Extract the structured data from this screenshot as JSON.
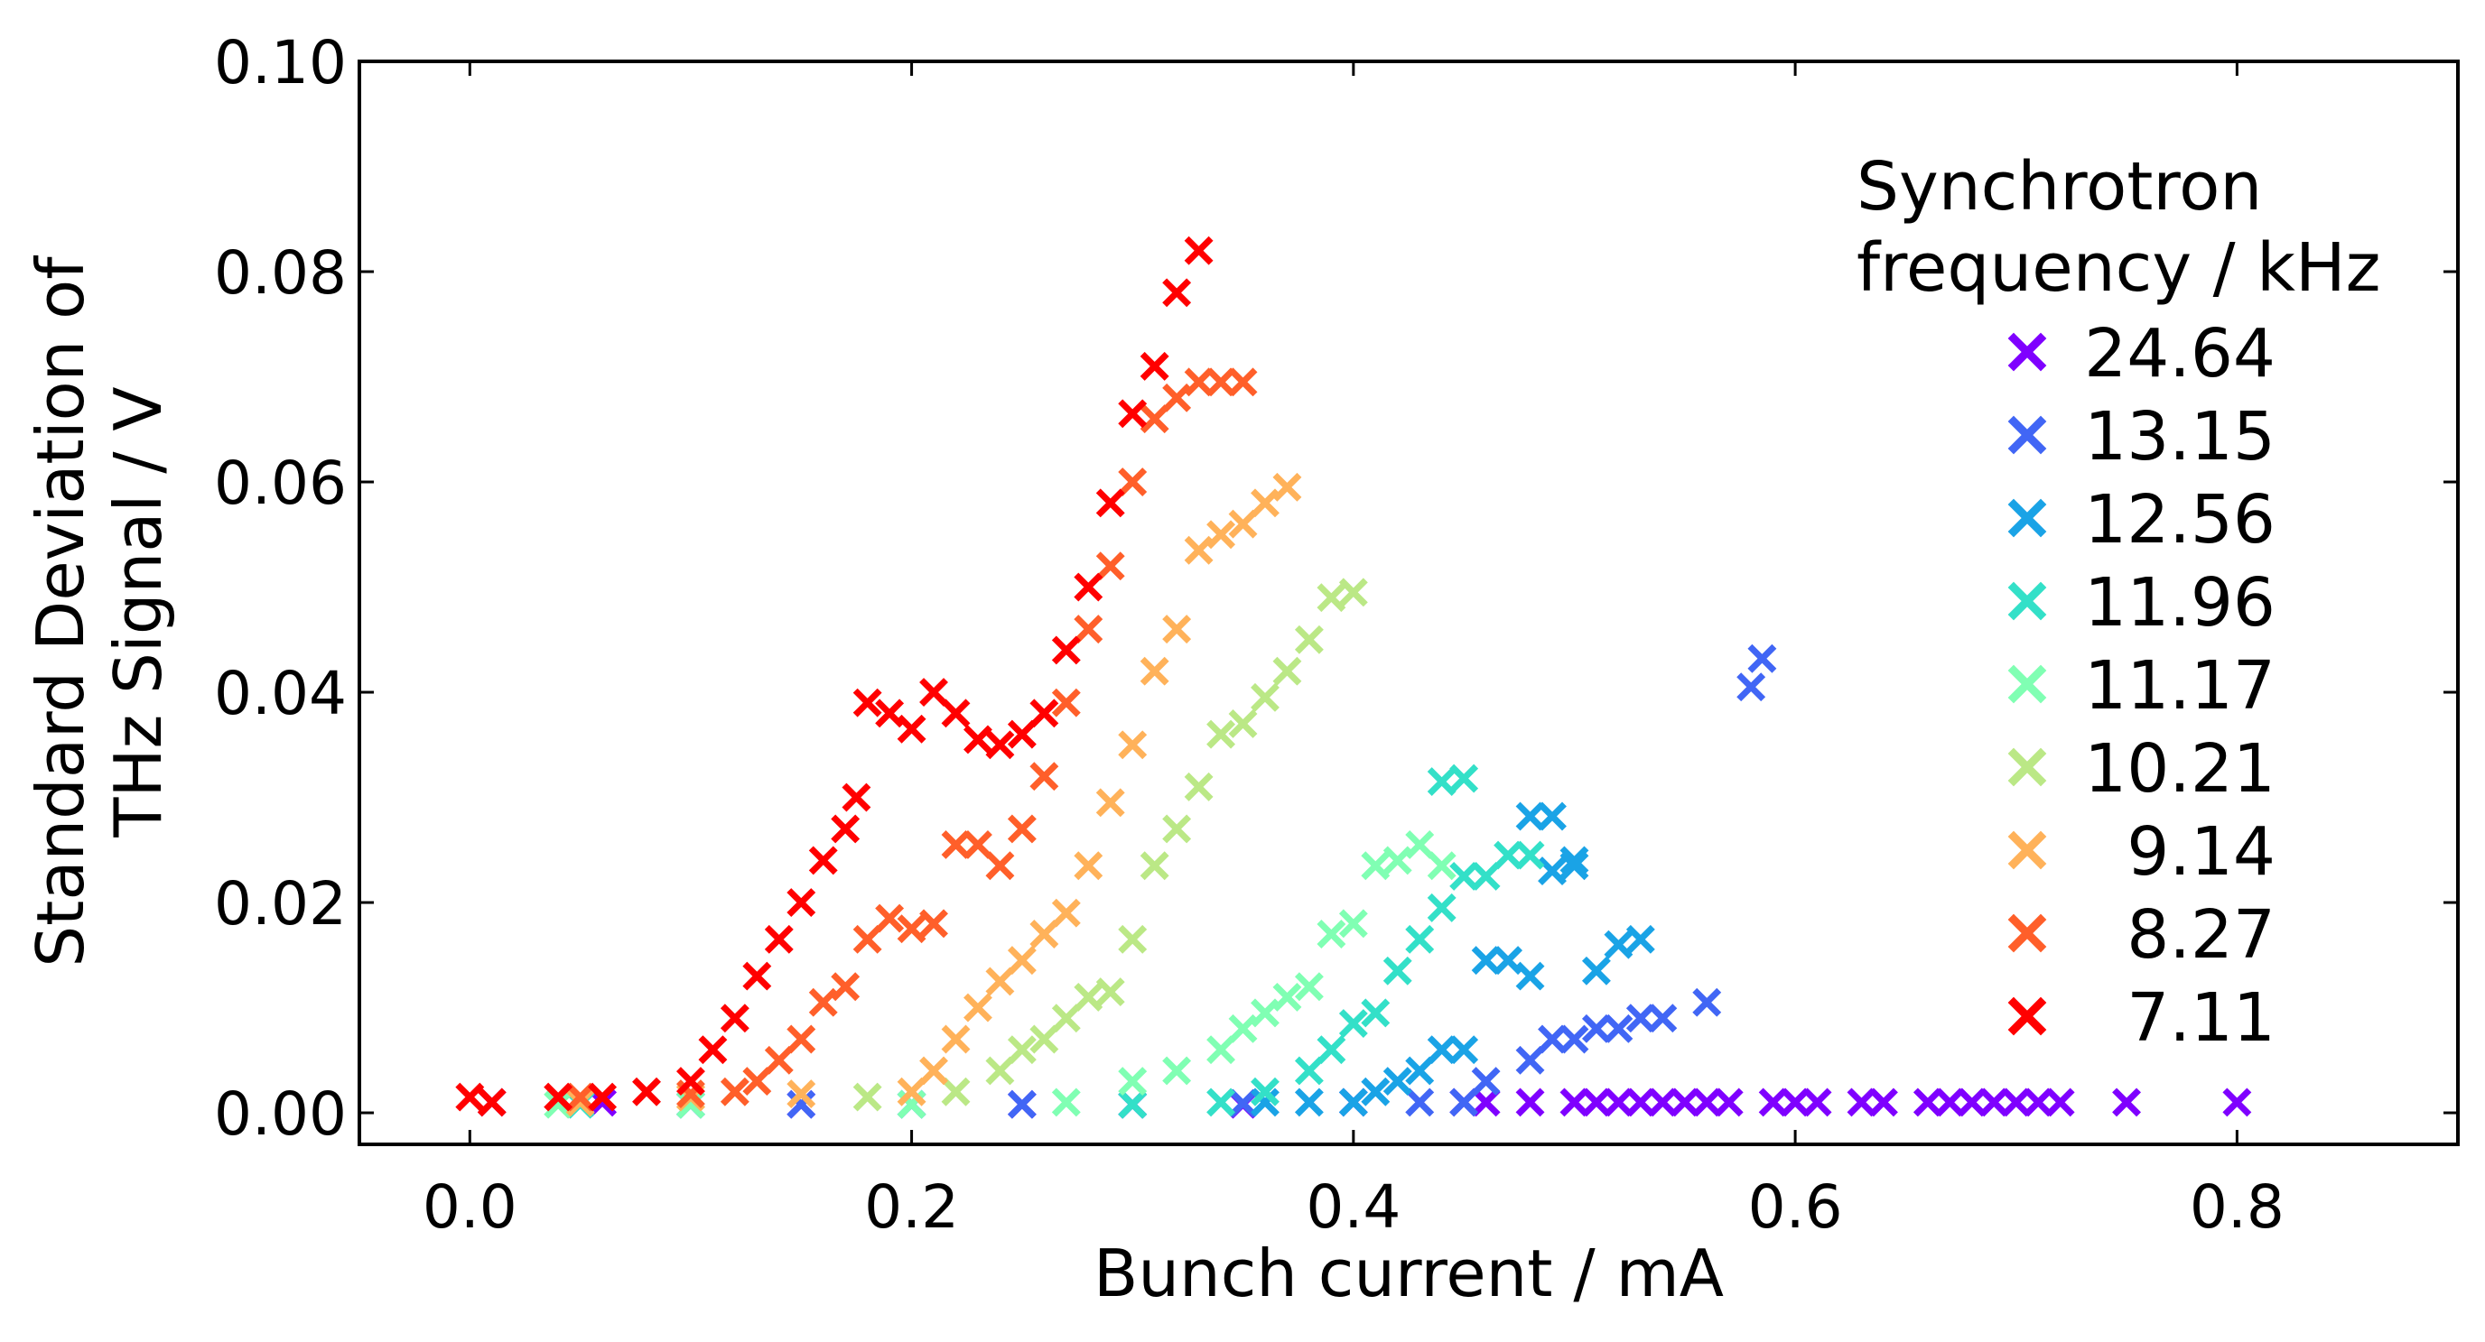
{
  "chart_data": {
    "type": "scatter",
    "xlabel": "Bunch current / mA",
    "ylabel_line1": "Standard Deviation of",
    "ylabel_line2": "THz Signal / V",
    "xlim": [
      -0.05,
      0.9
    ],
    "ylim": [
      -0.003,
      0.1
    ],
    "xticks": [
      0.0,
      0.2,
      0.4,
      0.6,
      0.8
    ],
    "xtick_labels": [
      "0.0",
      "0.2",
      "0.4",
      "0.6",
      "0.8"
    ],
    "yticks": [
      0.0,
      0.02,
      0.04,
      0.06,
      0.08,
      0.1
    ],
    "ytick_labels": [
      "0.00",
      "0.02",
      "0.04",
      "0.06",
      "0.08",
      "0.10"
    ],
    "marker": "x",
    "grid": false,
    "legend": {
      "title_line1": "Synchrotron",
      "title_line2": "frequency / kHz",
      "placement": "upper-right"
    },
    "series": [
      {
        "name": "24.64",
        "color": "#7f00ff",
        "points": [
          [
            0.01,
            0.001
          ],
          [
            0.06,
            0.001
          ],
          [
            0.1,
            0.0008
          ],
          [
            0.15,
            0.0008
          ],
          [
            0.2,
            0.0008
          ],
          [
            0.25,
            0.0008
          ],
          [
            0.3,
            0.0008
          ],
          [
            0.35,
            0.0008
          ],
          [
            0.4,
            0.001
          ],
          [
            0.45,
            0.001
          ],
          [
            0.46,
            0.001
          ],
          [
            0.48,
            0.001
          ],
          [
            0.5,
            0.001
          ],
          [
            0.51,
            0.001
          ],
          [
            0.52,
            0.001
          ],
          [
            0.53,
            0.001
          ],
          [
            0.54,
            0.001
          ],
          [
            0.55,
            0.001
          ],
          [
            0.56,
            0.001
          ],
          [
            0.57,
            0.001
          ],
          [
            0.59,
            0.001
          ],
          [
            0.6,
            0.001
          ],
          [
            0.61,
            0.001
          ],
          [
            0.63,
            0.001
          ],
          [
            0.64,
            0.001
          ],
          [
            0.66,
            0.001
          ],
          [
            0.67,
            0.001
          ],
          [
            0.68,
            0.001
          ],
          [
            0.69,
            0.001
          ],
          [
            0.7,
            0.001
          ],
          [
            0.71,
            0.001
          ],
          [
            0.72,
            0.001
          ],
          [
            0.75,
            0.001
          ],
          [
            0.8,
            0.001
          ]
        ]
      },
      {
        "name": "13.15",
        "color": "#4166f5",
        "points": [
          [
            0.05,
            0.001
          ],
          [
            0.1,
            0.0008
          ],
          [
            0.15,
            0.0008
          ],
          [
            0.2,
            0.0008
          ],
          [
            0.25,
            0.0008
          ],
          [
            0.3,
            0.0008
          ],
          [
            0.35,
            0.0009
          ],
          [
            0.4,
            0.001
          ],
          [
            0.43,
            0.001
          ],
          [
            0.45,
            0.001
          ],
          [
            0.46,
            0.003
          ],
          [
            0.48,
            0.005
          ],
          [
            0.49,
            0.007
          ],
          [
            0.5,
            0.007
          ],
          [
            0.51,
            0.008
          ],
          [
            0.52,
            0.008
          ],
          [
            0.53,
            0.009
          ],
          [
            0.54,
            0.009
          ],
          [
            0.56,
            0.0105
          ],
          [
            0.58,
            0.0405
          ],
          [
            0.585,
            0.0432
          ]
        ]
      },
      {
        "name": "12.56",
        "color": "#1aa3e6",
        "points": [
          [
            0.05,
            0.001
          ],
          [
            0.1,
            0.0008
          ],
          [
            0.2,
            0.0008
          ],
          [
            0.3,
            0.0008
          ],
          [
            0.36,
            0.001
          ],
          [
            0.38,
            0.001
          ],
          [
            0.4,
            0.001
          ],
          [
            0.41,
            0.002
          ],
          [
            0.42,
            0.003
          ],
          [
            0.43,
            0.004
          ],
          [
            0.44,
            0.006
          ],
          [
            0.45,
            0.006
          ],
          [
            0.46,
            0.0145
          ],
          [
            0.47,
            0.0145
          ],
          [
            0.48,
            0.013
          ],
          [
            0.49,
            0.023
          ],
          [
            0.5,
            0.024
          ],
          [
            0.5,
            0.0235
          ],
          [
            0.51,
            0.0135
          ],
          [
            0.52,
            0.016
          ],
          [
            0.53,
            0.0165
          ],
          [
            0.49,
            0.0282
          ],
          [
            0.48,
            0.0282
          ]
        ]
      },
      {
        "name": "11.96",
        "color": "#33e0c8",
        "points": [
          [
            0.05,
            0.0008
          ],
          [
            0.1,
            0.0008
          ],
          [
            0.2,
            0.0008
          ],
          [
            0.3,
            0.0008
          ],
          [
            0.34,
            0.001
          ],
          [
            0.36,
            0.002
          ],
          [
            0.38,
            0.004
          ],
          [
            0.39,
            0.006
          ],
          [
            0.4,
            0.0085
          ],
          [
            0.41,
            0.0095
          ],
          [
            0.42,
            0.0135
          ],
          [
            0.43,
            0.0165
          ],
          [
            0.44,
            0.0195
          ],
          [
            0.45,
            0.0225
          ],
          [
            0.46,
            0.0225
          ],
          [
            0.47,
            0.0245
          ],
          [
            0.48,
            0.0245
          ],
          [
            0.45,
            0.0318
          ],
          [
            0.44,
            0.0315
          ]
        ]
      },
      {
        "name": "11.17",
        "color": "#80ffb3",
        "points": [
          [
            0.04,
            0.0008
          ],
          [
            0.1,
            0.0008
          ],
          [
            0.2,
            0.0008
          ],
          [
            0.27,
            0.001
          ],
          [
            0.3,
            0.003
          ],
          [
            0.32,
            0.004
          ],
          [
            0.34,
            0.006
          ],
          [
            0.35,
            0.008
          ],
          [
            0.36,
            0.0095
          ],
          [
            0.37,
            0.011
          ],
          [
            0.38,
            0.012
          ],
          [
            0.39,
            0.017
          ],
          [
            0.4,
            0.018
          ],
          [
            0.41,
            0.0235
          ],
          [
            0.42,
            0.024
          ],
          [
            0.43,
            0.0255
          ],
          [
            0.44,
            0.0235
          ]
        ]
      },
      {
        "name": "10.21",
        "color": "#bbe886",
        "points": [
          [
            0.05,
            0.001
          ],
          [
            0.1,
            0.0015
          ],
          [
            0.18,
            0.0015
          ],
          [
            0.22,
            0.002
          ],
          [
            0.24,
            0.004
          ],
          [
            0.25,
            0.006
          ],
          [
            0.26,
            0.007
          ],
          [
            0.27,
            0.009
          ],
          [
            0.28,
            0.011
          ],
          [
            0.29,
            0.0115
          ],
          [
            0.3,
            0.0165
          ],
          [
            0.31,
            0.0235
          ],
          [
            0.32,
            0.027
          ],
          [
            0.33,
            0.031
          ],
          [
            0.34,
            0.036
          ],
          [
            0.35,
            0.037
          ],
          [
            0.36,
            0.0395
          ],
          [
            0.37,
            0.042
          ],
          [
            0.38,
            0.045
          ],
          [
            0.39,
            0.049
          ],
          [
            0.4,
            0.0495
          ]
        ]
      },
      {
        "name": "9.14",
        "color": "#ffb25a",
        "points": [
          [
            0.05,
            0.001
          ],
          [
            0.1,
            0.0015
          ],
          [
            0.15,
            0.0018
          ],
          [
            0.2,
            0.002
          ],
          [
            0.21,
            0.004
          ],
          [
            0.22,
            0.007
          ],
          [
            0.23,
            0.01
          ],
          [
            0.24,
            0.0125
          ],
          [
            0.25,
            0.0145
          ],
          [
            0.26,
            0.017
          ],
          [
            0.27,
            0.019
          ],
          [
            0.28,
            0.0235
          ],
          [
            0.29,
            0.0295
          ],
          [
            0.3,
            0.035
          ],
          [
            0.31,
            0.042
          ],
          [
            0.32,
            0.046
          ],
          [
            0.33,
            0.0535
          ],
          [
            0.34,
            0.055
          ],
          [
            0.35,
            0.056
          ],
          [
            0.36,
            0.058
          ],
          [
            0.37,
            0.0595
          ]
        ]
      },
      {
        "name": "8.27",
        "color": "#ff5f2a",
        "points": [
          [
            0.05,
            0.0015
          ],
          [
            0.1,
            0.0018
          ],
          [
            0.12,
            0.002
          ],
          [
            0.13,
            0.003
          ],
          [
            0.14,
            0.005
          ],
          [
            0.15,
            0.007
          ],
          [
            0.16,
            0.0105
          ],
          [
            0.17,
            0.012
          ],
          [
            0.18,
            0.0165
          ],
          [
            0.19,
            0.0185
          ],
          [
            0.2,
            0.0175
          ],
          [
            0.21,
            0.018
          ],
          [
            0.22,
            0.0255
          ],
          [
            0.23,
            0.0255
          ],
          [
            0.24,
            0.0235
          ],
          [
            0.25,
            0.027
          ],
          [
            0.26,
            0.032
          ],
          [
            0.27,
            0.039
          ],
          [
            0.28,
            0.046
          ],
          [
            0.29,
            0.052
          ],
          [
            0.3,
            0.06
          ],
          [
            0.31,
            0.066
          ],
          [
            0.32,
            0.068
          ],
          [
            0.33,
            0.0695
          ],
          [
            0.34,
            0.0695
          ],
          [
            0.35,
            0.0695
          ]
        ]
      },
      {
        "name": "7.11",
        "color": "#ff0000",
        "points": [
          [
            0.0,
            0.0015
          ],
          [
            0.01,
            0.001
          ],
          [
            0.04,
            0.0015
          ],
          [
            0.06,
            0.0015
          ],
          [
            0.08,
            0.002
          ],
          [
            0.1,
            0.003
          ],
          [
            0.11,
            0.006
          ],
          [
            0.12,
            0.009
          ],
          [
            0.13,
            0.013
          ],
          [
            0.14,
            0.0165
          ],
          [
            0.15,
            0.02
          ],
          [
            0.16,
            0.024
          ],
          [
            0.17,
            0.027
          ],
          [
            0.175,
            0.03
          ],
          [
            0.18,
            0.039
          ],
          [
            0.19,
            0.038
          ],
          [
            0.2,
            0.0365
          ],
          [
            0.21,
            0.04
          ],
          [
            0.22,
            0.038
          ],
          [
            0.23,
            0.0355
          ],
          [
            0.24,
            0.035
          ],
          [
            0.25,
            0.036
          ],
          [
            0.26,
            0.038
          ],
          [
            0.27,
            0.044
          ],
          [
            0.28,
            0.05
          ],
          [
            0.29,
            0.058
          ],
          [
            0.3,
            0.0665
          ],
          [
            0.31,
            0.071
          ],
          [
            0.32,
            0.078
          ],
          [
            0.33,
            0.082
          ]
        ]
      }
    ]
  }
}
